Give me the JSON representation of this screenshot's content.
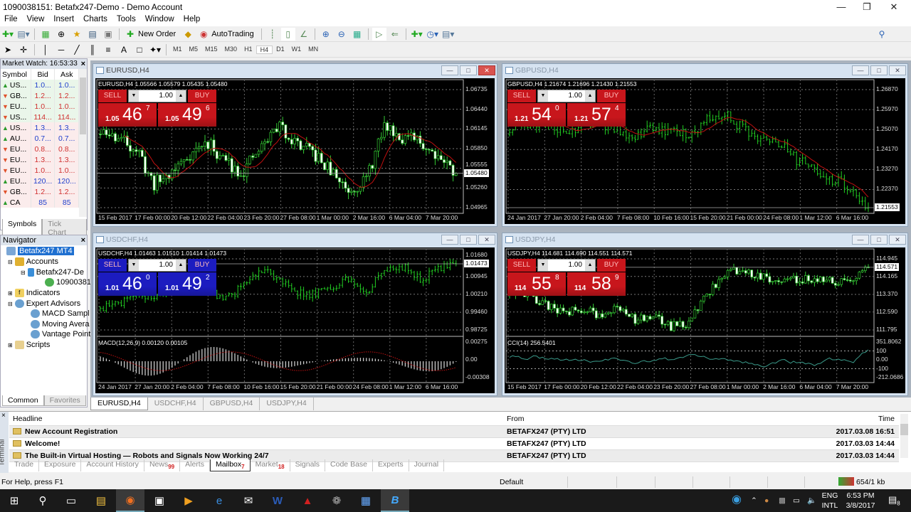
{
  "window": {
    "title": "1090038151: Betafx247-Demo - Demo Account"
  },
  "menu": [
    "File",
    "View",
    "Insert",
    "Charts",
    "Tools",
    "Window",
    "Help"
  ],
  "toolbar": {
    "new_order": "New Order",
    "autotrading": "AutoTrading",
    "timeframes": [
      "M1",
      "M5",
      "M15",
      "M30",
      "H1",
      "H4",
      "D1",
      "W1",
      "MN"
    ],
    "active_timeframe": "H4"
  },
  "market_watch": {
    "title": "Market Watch: 16:53:33",
    "columns": [
      "Symbol",
      "Bid",
      "Ask"
    ],
    "rows": [
      {
        "symbol": "US...",
        "bid": "1.0...",
        "ask": "1.0...",
        "dir": "up"
      },
      {
        "symbol": "GB...",
        "bid": "1.2...",
        "ask": "1.2...",
        "dir": "down"
      },
      {
        "symbol": "EU...",
        "bid": "1.0...",
        "ask": "1.0...",
        "dir": "down"
      },
      {
        "symbol": "US...",
        "bid": "114...",
        "ask": "114...",
        "dir": "down"
      },
      {
        "symbol": "US...",
        "bid": "1.3...",
        "ask": "1.3...",
        "dir": "up"
      },
      {
        "symbol": "AU...",
        "bid": "0.7...",
        "ask": "0.7...",
        "dir": "up"
      },
      {
        "symbol": "EU...",
        "bid": "0.8...",
        "ask": "0.8...",
        "dir": "down"
      },
      {
        "symbol": "EU...",
        "bid": "1.3...",
        "ask": "1.3...",
        "dir": "down"
      },
      {
        "symbol": "EU...",
        "bid": "1.0...",
        "ask": "1.0...",
        "dir": "down"
      },
      {
        "symbol": "EU...",
        "bid": "120...",
        "ask": "120...",
        "dir": "up"
      },
      {
        "symbol": "GB...",
        "bid": "1.2...",
        "ask": "1.2...",
        "dir": "down"
      },
      {
        "symbol": "CA",
        "bid": "85",
        "ask": "85",
        "dir": "up"
      }
    ],
    "tabs": [
      "Symbols",
      "Tick Chart"
    ]
  },
  "navigator": {
    "title": "Navigator",
    "items": [
      "Betafx247 MT4",
      "Accounts",
      "Betafx247-De",
      "10900381",
      "Indicators",
      "Expert Advisors",
      "MACD Sampl",
      "Moving Avera",
      "Vantage Point",
      "Scripts"
    ],
    "tabs": [
      "Common",
      "Favorites"
    ]
  },
  "charts": [
    {
      "title": "EURUSD,H4",
      "info": "EURUSD,H4  1.05566 1.05579 1.05435 1.05480",
      "active": true,
      "panel_color": "#c8161c",
      "sell": "SELL",
      "buy": "BUY",
      "lot": "1.00",
      "sell_price": {
        "small": "1.05",
        "main": "46",
        "pip": "7"
      },
      "buy_price": {
        "small": "1.05",
        "main": "49",
        "pip": "6"
      },
      "price_axis": [
        "1.06735",
        "1.06440",
        "1.06145",
        "1.05850",
        "1.05555",
        "1.05260",
        "1.04965"
      ],
      "current_price": "1.05480",
      "time_axis": [
        "15 Feb 2017",
        "17 Feb 00:00",
        "20 Feb 12:00",
        "22 Feb 04:00",
        "23 Feb 20:00",
        "27 Feb 08:00",
        "1 Mar 00:00",
        "2 Mar 16:00",
        "6 Mar 04:00",
        "7 Mar 20:00"
      ]
    },
    {
      "title": "GBPUSD,H4",
      "info": "GBPUSD,H4  1.21674 1.21696 1.21430 1.21553",
      "active": false,
      "panel_color": "#c8161c",
      "sell": "SELL",
      "buy": "BUY",
      "lot": "1.00",
      "sell_price": {
        "small": "1.21",
        "main": "54",
        "pip": "0"
      },
      "buy_price": {
        "small": "1.21",
        "main": "57",
        "pip": "4"
      },
      "price_axis": [
        "1.26870",
        "1.25970",
        "1.25070",
        "1.24170",
        "1.23270",
        "1.22370"
      ],
      "current_price": "1.21553",
      "time_axis": [
        "24 Jan 2017",
        "27 Jan 20:00",
        "2 Feb 04:00",
        "7 Feb 08:00",
        "10 Feb 16:00",
        "15 Feb 20:00",
        "21 Feb 00:00",
        "24 Feb 08:00",
        "1 Mar 12:00",
        "6 Mar 16:00"
      ]
    },
    {
      "title": "USDCHF,H4",
      "info": "USDCHF,H4  1.01463 1.01510 1.01414 1.01473",
      "active": false,
      "panel_color": "#1c1cc0",
      "sell": "SELL",
      "buy": "BUY",
      "lot": "1.00",
      "sell_price": {
        "small": "1.01",
        "main": "46",
        "pip": "0"
      },
      "buy_price": {
        "small": "1.01",
        "main": "49",
        "pip": "2"
      },
      "price_axis": [
        "1.01680",
        "1.00945",
        "1.00210",
        "0.99460",
        "0.98725"
      ],
      "current_price": "1.01473",
      "indicator": {
        "label": "MACD(12,26,9) 0.00120 0.00105",
        "axis": [
          "0.00275",
          "0.00",
          "-0.00308"
        ]
      },
      "time_axis": [
        "24 Jan 2017",
        "27 Jan 20:00",
        "2 Feb 04:00",
        "7 Feb 08:00",
        "10 Feb 16:00",
        "15 Feb 20:00",
        "21 Feb 00:00",
        "24 Feb 08:00",
        "1 Mar 12:00",
        "6 Mar 16:00"
      ]
    },
    {
      "title": "USDJPY,H4",
      "info": "USDJPY,H4  114.681 114.690 114.551 114.571",
      "active": false,
      "panel_color": "#c8161c",
      "sell": "SELL",
      "buy": "BUY",
      "lot": "1.00",
      "sell_price": {
        "small": "114",
        "main": "55",
        "pip": "8"
      },
      "buy_price": {
        "small": "114",
        "main": "58",
        "pip": "9"
      },
      "price_axis": [
        "114.945",
        "114.165",
        "113.370",
        "112.590",
        "111.795"
      ],
      "current_price": "114.571",
      "indicator": {
        "label": "CCI(14) 256.5401",
        "axis": [
          "351.8062",
          "100",
          "0.00",
          "-100",
          "-212.0686"
        ]
      },
      "time_axis": [
        "15 Feb 2017",
        "17 Feb 00:00",
        "20 Feb 12:00",
        "22 Feb 04:00",
        "23 Feb 20:00",
        "27 Feb 08:00",
        "1 Mar 00:00",
        "2 Mar 16:00",
        "6 Mar 04:00",
        "7 Mar 20:00"
      ]
    }
  ],
  "chart_tabs": [
    "EURUSD,H4",
    "USDCHF,H4",
    "GBPUSD,H4",
    "USDJPY,H4"
  ],
  "terminal": {
    "label": "Terminal",
    "columns": {
      "headline": "Headline",
      "from": "From",
      "time": "Time"
    },
    "rows": [
      {
        "headline": "New Account Registration",
        "from": "BETAFX247 (PTY) LTD",
        "time": "2017.03.08 16:51"
      },
      {
        "headline": "Welcome!",
        "from": "BETAFX247 (PTY) LTD",
        "time": "2017.03.03 14:44"
      },
      {
        "headline": "The Built-in Virtual Hosting — Robots and Signals Now Working 24/7",
        "from": "BETAFX247 (PTY) LTD",
        "time": "2017.03.03 14:44"
      }
    ],
    "tabs": [
      {
        "label": "Trade",
        "badge": ""
      },
      {
        "label": "Exposure",
        "badge": ""
      },
      {
        "label": "Account History",
        "badge": ""
      },
      {
        "label": "News",
        "badge": "99"
      },
      {
        "label": "Alerts",
        "badge": ""
      },
      {
        "label": "Mailbox",
        "badge": "7"
      },
      {
        "label": "Market",
        "badge": "18"
      },
      {
        "label": "Signals",
        "badge": ""
      },
      {
        "label": "Code Base",
        "badge": ""
      },
      {
        "label": "Experts",
        "badge": ""
      },
      {
        "label": "Journal",
        "badge": ""
      }
    ],
    "active_tab": "Mailbox"
  },
  "status": {
    "help": "For Help, press F1",
    "profile": "Default",
    "traffic": "654/1 kb"
  },
  "taskbar": {
    "lang1": "ENG",
    "lang2": "INTL",
    "time": "6:53 PM",
    "date": "3/8/2017",
    "notifications": "8"
  }
}
